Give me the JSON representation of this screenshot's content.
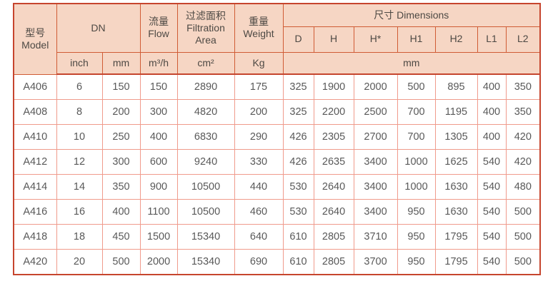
{
  "table": {
    "header": {
      "model": "型号\nModel",
      "dn": "DN",
      "flow": "流量\nFlow",
      "filtration_area": "过滤面积\nFiltration\nArea",
      "weight": "重量\nWeight",
      "dimensions": "尺寸 Dimensions",
      "dim_cols": [
        "D",
        "H",
        "H*",
        "H1",
        "H2",
        "L1",
        "L2"
      ],
      "unit_inch": "inch",
      "unit_mm": "mm",
      "unit_flow": "m³/h",
      "unit_area": "cm²",
      "unit_weight": "Kg",
      "unit_dimensions": "mm"
    },
    "rows": [
      [
        "A406",
        "6",
        "150",
        "150",
        "2890",
        "175",
        "325",
        "1900",
        "2000",
        "500",
        "895",
        "400",
        "350"
      ],
      [
        "A408",
        "8",
        "200",
        "300",
        "4820",
        "200",
        "325",
        "2200",
        "2500",
        "700",
        "1195",
        "400",
        "350"
      ],
      [
        "A410",
        "10",
        "250",
        "400",
        "6830",
        "290",
        "426",
        "2305",
        "2700",
        "700",
        "1305",
        "400",
        "420"
      ],
      [
        "A412",
        "12",
        "300",
        "600",
        "9240",
        "330",
        "426",
        "2635",
        "3400",
        "1000",
        "1625",
        "540",
        "420"
      ],
      [
        "A414",
        "14",
        "350",
        "900",
        "10500",
        "440",
        "530",
        "2640",
        "3400",
        "1000",
        "1630",
        "540",
        "480"
      ],
      [
        "A416",
        "16",
        "400",
        "1100",
        "10500",
        "460",
        "530",
        "2640",
        "3400",
        "950",
        "1630",
        "540",
        "500"
      ],
      [
        "A418",
        "18",
        "450",
        "1500",
        "15340",
        "640",
        "610",
        "2805",
        "3710",
        "950",
        "1795",
        "540",
        "500"
      ],
      [
        "A420",
        "20",
        "500",
        "2000",
        "15340",
        "690",
        "610",
        "2805",
        "3700",
        "950",
        "1795",
        "540",
        "500"
      ]
    ],
    "colors": {
      "header_bg": "#f6d6c4",
      "outer_border": "#c6452e",
      "header_border": "#d05c35",
      "cell_border": "#f09b8c",
      "header_text": "#4d4944",
      "cell_text": "#595959"
    }
  }
}
